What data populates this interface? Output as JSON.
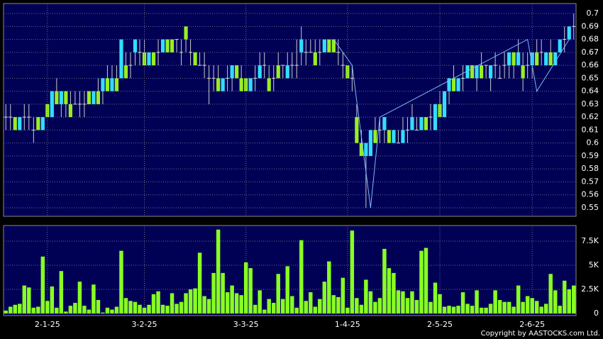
{
  "chart_data": [
    {
      "type": "candlestick",
      "up_color": "#33ddff",
      "down_color": "#99ee22",
      "doji_color": "#dddddd",
      "xlim": [
        -0.5,
        123.5
      ],
      "ylim": [
        0.5434,
        0.7077
      ],
      "yticks": [
        0.55,
        0.56,
        0.57,
        0.58,
        0.59,
        0.6,
        0.61,
        0.62,
        0.63,
        0.64,
        0.65,
        0.66,
        0.67,
        0.68,
        0.69,
        0.7
      ],
      "grid": true,
      "ohlc": [
        [
          0.62,
          0.63,
          0.61,
          0.62
        ],
        [
          0.62,
          0.63,
          0.61,
          0.62
        ],
        [
          0.62,
          0.62,
          0.61,
          0.61
        ],
        [
          0.61,
          0.62,
          0.61,
          0.62
        ],
        [
          0.62,
          0.63,
          0.61,
          0.62
        ],
        [
          0.62,
          0.63,
          0.61,
          0.62
        ],
        [
          0.61,
          0.62,
          0.6,
          0.61
        ],
        [
          0.62,
          0.62,
          0.61,
          0.61
        ],
        [
          0.61,
          0.62,
          0.61,
          0.62
        ],
        [
          0.63,
          0.63,
          0.62,
          0.62
        ],
        [
          0.62,
          0.64,
          0.62,
          0.64
        ],
        [
          0.64,
          0.65,
          0.63,
          0.63
        ],
        [
          0.63,
          0.64,
          0.62,
          0.64
        ],
        [
          0.64,
          0.64,
          0.62,
          0.63
        ],
        [
          0.63,
          0.64,
          0.62,
          0.62
        ],
        [
          0.63,
          0.64,
          0.63,
          0.63
        ],
        [
          0.63,
          0.64,
          0.62,
          0.63
        ],
        [
          0.63,
          0.64,
          0.62,
          0.63
        ],
        [
          0.64,
          0.64,
          0.63,
          0.63
        ],
        [
          0.63,
          0.64,
          0.63,
          0.64
        ],
        [
          0.64,
          0.65,
          0.63,
          0.63
        ],
        [
          0.64,
          0.65,
          0.63,
          0.65
        ],
        [
          0.65,
          0.66,
          0.64,
          0.64
        ],
        [
          0.64,
          0.66,
          0.64,
          0.65
        ],
        [
          0.65,
          0.66,
          0.64,
          0.64
        ],
        [
          0.65,
          0.68,
          0.65,
          0.68
        ],
        [
          0.66,
          0.67,
          0.65,
          0.65
        ],
        [
          0.66,
          0.67,
          0.65,
          0.66
        ],
        [
          0.67,
          0.68,
          0.66,
          0.68
        ],
        [
          0.67,
          0.68,
          0.66,
          0.67
        ],
        [
          0.67,
          0.68,
          0.66,
          0.66
        ],
        [
          0.66,
          0.67,
          0.66,
          0.67
        ],
        [
          0.67,
          0.67,
          0.66,
          0.66
        ],
        [
          0.67,
          0.68,
          0.66,
          0.67
        ],
        [
          0.67,
          0.68,
          0.67,
          0.68
        ],
        [
          0.68,
          0.68,
          0.67,
          0.67
        ],
        [
          0.68,
          0.68,
          0.67,
          0.67
        ],
        [
          0.68,
          0.68,
          0.67,
          0.68
        ],
        [
          0.67,
          0.68,
          0.66,
          0.67
        ],
        [
          0.69,
          0.69,
          0.67,
          0.68
        ],
        [
          0.67,
          0.68,
          0.66,
          0.67
        ],
        [
          0.67,
          0.67,
          0.66,
          0.66
        ],
        [
          0.66,
          0.67,
          0.66,
          0.66
        ],
        [
          0.66,
          0.67,
          0.65,
          0.66
        ],
        [
          0.65,
          0.66,
          0.63,
          0.65
        ],
        [
          0.65,
          0.66,
          0.64,
          0.65
        ],
        [
          0.65,
          0.66,
          0.64,
          0.64
        ],
        [
          0.64,
          0.65,
          0.64,
          0.65
        ],
        [
          0.65,
          0.66,
          0.64,
          0.65
        ],
        [
          0.65,
          0.66,
          0.64,
          0.66
        ],
        [
          0.66,
          0.66,
          0.65,
          0.65
        ],
        [
          0.65,
          0.66,
          0.64,
          0.64
        ],
        [
          0.65,
          0.65,
          0.64,
          0.64
        ],
        [
          0.64,
          0.65,
          0.64,
          0.65
        ],
        [
          0.65,
          0.66,
          0.64,
          0.65
        ],
        [
          0.65,
          0.67,
          0.65,
          0.66
        ],
        [
          0.66,
          0.67,
          0.65,
          0.66
        ],
        [
          0.65,
          0.66,
          0.64,
          0.64
        ],
        [
          0.65,
          0.66,
          0.64,
          0.65
        ],
        [
          0.66,
          0.67,
          0.65,
          0.65
        ],
        [
          0.66,
          0.66,
          0.65,
          0.66
        ],
        [
          0.65,
          0.67,
          0.65,
          0.66
        ],
        [
          0.66,
          0.67,
          0.65,
          0.66
        ],
        [
          0.66,
          0.68,
          0.65,
          0.66
        ],
        [
          0.67,
          0.69,
          0.66,
          0.68
        ],
        [
          0.67,
          0.68,
          0.66,
          0.67
        ],
        [
          0.67,
          0.68,
          0.67,
          0.67
        ],
        [
          0.67,
          0.68,
          0.66,
          0.66
        ],
        [
          0.67,
          0.68,
          0.66,
          0.67
        ],
        [
          0.67,
          0.68,
          0.67,
          0.68
        ],
        [
          0.68,
          0.68,
          0.67,
          0.67
        ],
        [
          0.68,
          0.68,
          0.67,
          0.67
        ],
        [
          0.67,
          0.68,
          0.66,
          0.67
        ],
        [
          0.66,
          0.67,
          0.65,
          0.66
        ],
        [
          0.66,
          0.66,
          0.65,
          0.65
        ],
        [
          0.65,
          0.66,
          0.64,
          0.65
        ],
        [
          0.62,
          0.63,
          0.6,
          0.6
        ],
        [
          0.6,
          0.61,
          0.59,
          0.59
        ],
        [
          0.59,
          0.6,
          0.55,
          0.6
        ],
        [
          0.59,
          0.61,
          0.59,
          0.61
        ],
        [
          0.61,
          0.62,
          0.6,
          0.6
        ],
        [
          0.61,
          0.62,
          0.6,
          0.61
        ],
        [
          0.61,
          0.62,
          0.6,
          0.62
        ],
        [
          0.61,
          0.61,
          0.6,
          0.6
        ],
        [
          0.6,
          0.61,
          0.6,
          0.61
        ],
        [
          0.6,
          0.61,
          0.6,
          0.6
        ],
        [
          0.6,
          0.62,
          0.6,
          0.61
        ],
        [
          0.61,
          0.62,
          0.6,
          0.61
        ],
        [
          0.61,
          0.63,
          0.61,
          0.62
        ],
        [
          0.61,
          0.62,
          0.61,
          0.61
        ],
        [
          0.61,
          0.62,
          0.61,
          0.62
        ],
        [
          0.62,
          0.62,
          0.61,
          0.61
        ],
        [
          0.62,
          0.63,
          0.61,
          0.62
        ],
        [
          0.61,
          0.63,
          0.61,
          0.63
        ],
        [
          0.63,
          0.64,
          0.62,
          0.62
        ],
        [
          0.62,
          0.64,
          0.62,
          0.64
        ],
        [
          0.64,
          0.65,
          0.63,
          0.65
        ],
        [
          0.65,
          0.66,
          0.64,
          0.64
        ],
        [
          0.64,
          0.65,
          0.64,
          0.65
        ],
        [
          0.65,
          0.66,
          0.64,
          0.65
        ],
        [
          0.65,
          0.66,
          0.65,
          0.66
        ],
        [
          0.66,
          0.66,
          0.65,
          0.65
        ],
        [
          0.65,
          0.66,
          0.64,
          0.66
        ],
        [
          0.66,
          0.67,
          0.65,
          0.65
        ],
        [
          0.66,
          0.66,
          0.65,
          0.66
        ],
        [
          0.65,
          0.66,
          0.64,
          0.66
        ],
        [
          0.66,
          0.67,
          0.65,
          0.66
        ],
        [
          0.65,
          0.66,
          0.65,
          0.65
        ],
        [
          0.66,
          0.67,
          0.65,
          0.66
        ],
        [
          0.66,
          0.67,
          0.65,
          0.67
        ],
        [
          0.67,
          0.67,
          0.65,
          0.66
        ],
        [
          0.66,
          0.68,
          0.66,
          0.67
        ],
        [
          0.66,
          0.67,
          0.64,
          0.65
        ],
        [
          0.66,
          0.67,
          0.65,
          0.66
        ],
        [
          0.66,
          0.67,
          0.65,
          0.67
        ],
        [
          0.67,
          0.68,
          0.66,
          0.66
        ],
        [
          0.67,
          0.68,
          0.66,
          0.67
        ],
        [
          0.66,
          0.67,
          0.66,
          0.67
        ],
        [
          0.67,
          0.68,
          0.66,
          0.66
        ],
        [
          0.66,
          0.67,
          0.66,
          0.67
        ],
        [
          0.67,
          0.68,
          0.67,
          0.68
        ],
        [
          0.68,
          0.69,
          0.67,
          0.68
        ],
        [
          0.68,
          0.69,
          0.68,
          0.69
        ],
        [
          0.69,
          0.7,
          0.68,
          0.69
        ]
      ],
      "line": {
        "color": "#7fb8ff",
        "x": [
          71,
          75,
          79,
          81,
          113,
          115,
          122
        ],
        "values": [
          0.68,
          0.66,
          0.55,
          0.62,
          0.68,
          0.64,
          0.68
        ]
      }
    },
    {
      "type": "bar",
      "color": "#88ff22",
      "xlim": [
        -0.5,
        123.5
      ],
      "xticks": [
        {
          "value": 9,
          "label": "2-1-25"
        },
        {
          "value": 30,
          "label": "3-2-25"
        },
        {
          "value": 52,
          "label": "3-3-25"
        },
        {
          "value": 74,
          "label": "1-4-25"
        },
        {
          "value": 94,
          "label": "2-5-25"
        },
        {
          "value": 114,
          "label": "2-6-25"
        }
      ],
      "ylim": [
        -220,
        9120
      ],
      "yticks": [
        0,
        {
          "value": 2500,
          "label": "2.5K"
        },
        {
          "value": 5000,
          "label": "5K"
        },
        {
          "value": 7500,
          "label": "7.5K"
        }
      ],
      "grid": true,
      "values": [
        300,
        700,
        900,
        1000,
        2900,
        2700,
        600,
        700,
        5900,
        1300,
        2800,
        600,
        4400,
        200,
        800,
        1100,
        3300,
        800,
        400,
        3000,
        1400,
        100,
        600,
        400,
        700,
        6500,
        1600,
        1300,
        1200,
        900,
        600,
        900,
        2000,
        2300,
        900,
        800,
        2100,
        1000,
        1200,
        2100,
        2500,
        2600,
        6300,
        1800,
        1500,
        4200,
        8700,
        4200,
        2200,
        2900,
        2100,
        1900,
        5300,
        4700,
        900,
        2400,
        400,
        1500,
        1100,
        4100,
        1500,
        4900,
        1800,
        600,
        7600,
        1300,
        2200,
        700,
        1500,
        3300,
        5400,
        1900,
        1700,
        3700,
        600,
        8600,
        1600,
        900,
        3500,
        2300,
        1200,
        1600,
        6700,
        4700,
        4200,
        2400,
        2300,
        1600,
        2300,
        1400,
        6500,
        6800,
        1200,
        3200,
        2000,
        700,
        800,
        700,
        800,
        2200,
        1000,
        800,
        2400,
        600,
        600,
        1000,
        2400,
        1400,
        1200,
        1200,
        700,
        2900,
        1200,
        1800,
        1600,
        1300,
        700,
        1000,
        4100,
        2400,
        800,
        3400,
        2500,
        2900
      ]
    }
  ],
  "copyright": "Copyright by AASTOCKS.com Ltd."
}
